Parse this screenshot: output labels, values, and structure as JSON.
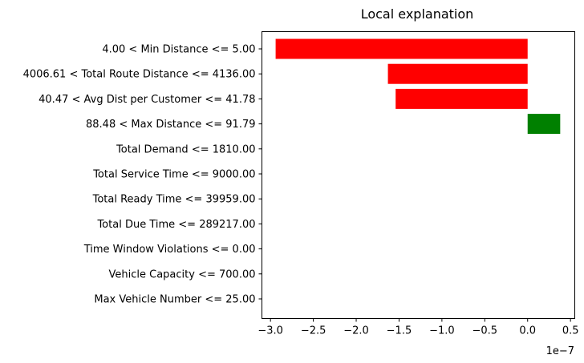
{
  "chart_data": {
    "type": "bar",
    "orientation": "horizontal",
    "title": "Local explanation",
    "xlabel": "",
    "ylabel": "",
    "x_scale_label": "1e−7",
    "xlim": [
      -3.1,
      0.55
    ],
    "grid": false,
    "legend": "none",
    "categories": [
      "4.00 < Min Distance <= 5.00",
      "4006.61 < Total Route Distance <= 4136.00",
      "40.47 < Avg Dist per Customer <= 41.78",
      "88.48 < Max Distance <= 91.79",
      "Total Demand <= 1810.00",
      "Total Service Time <= 9000.00",
      "Total Ready Time <= 39959.00",
      "Total Due Time <= 289217.00",
      "Time Window Violations <= 0.00",
      "Vehicle Capacity <= 700.00",
      "Max Vehicle Number <= 25.00"
    ],
    "values": [
      -2.94,
      -1.63,
      -1.54,
      0.38,
      0,
      0,
      0,
      0,
      0,
      0,
      0
    ],
    "x_ticks": [
      -3.0,
      -2.5,
      -2.0,
      -1.5,
      -1.0,
      -0.5,
      0.0,
      0.5
    ],
    "x_tick_labels": [
      "−3.0",
      "−2.5",
      "−2.0",
      "−1.5",
      "−1.0",
      "−0.5",
      "0.0",
      "0.5"
    ],
    "colors": {
      "negative": "#ff0000",
      "positive": "#008000"
    }
  }
}
